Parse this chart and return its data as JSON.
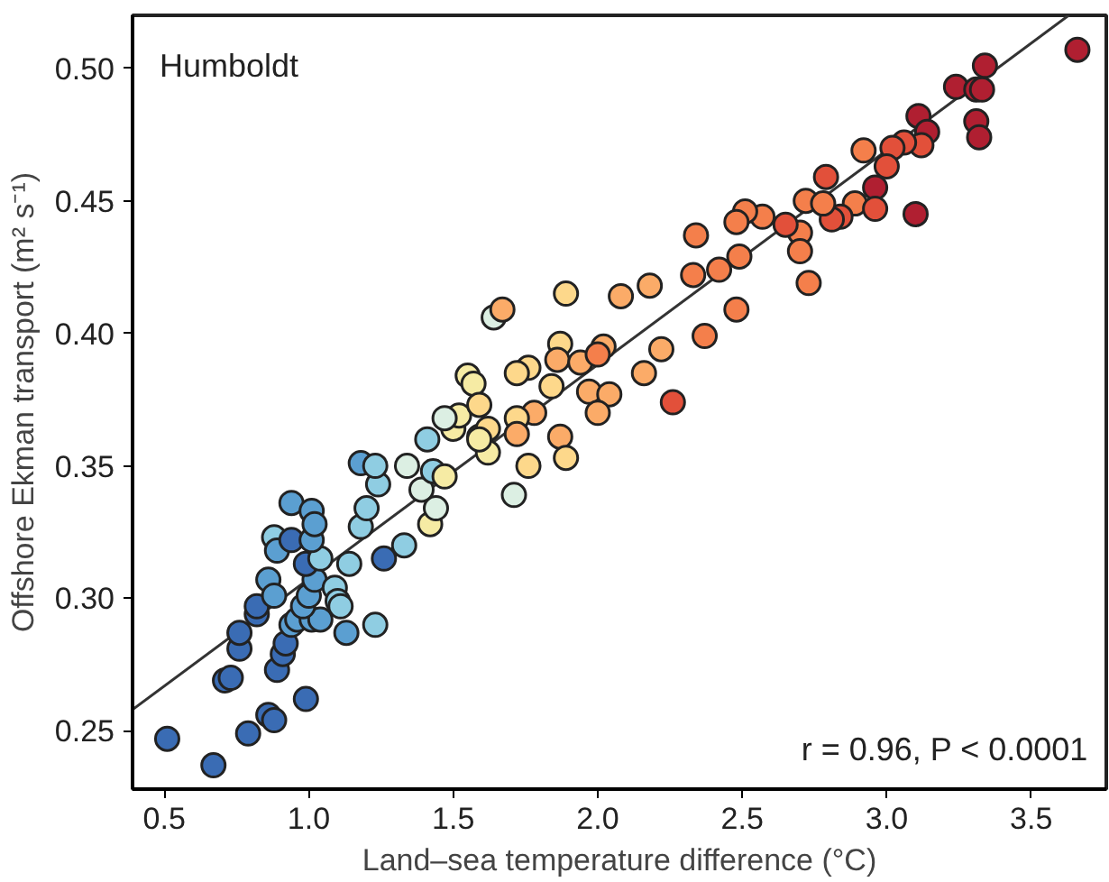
{
  "chart_data": {
    "type": "scatter",
    "xlabel": "Land–sea temperature difference (°C)",
    "ylabel": "Offshore Ekman transport (m² s⁻¹)",
    "annotations": [
      "Humboldt",
      "r = 0.96, P < 0.0001"
    ],
    "xlim": [
      0.39,
      3.76
    ],
    "ylim": [
      0.228,
      0.52
    ],
    "xticks": [
      0.5,
      {
        "value": 1,
        "label": "1.0"
      },
      1.5,
      {
        "value": 2,
        "label": "2.0"
      },
      2.5,
      {
        "value": 3,
        "label": "3.0"
      },
      3.5
    ],
    "yticks": [
      0.25,
      {
        "value": 0.3,
        "label": "0.30"
      },
      0.35,
      {
        "value": 0.4,
        "label": "0.40"
      },
      0.45,
      {
        "value": 0.5,
        "label": "0.50"
      }
    ],
    "marker": "circle",
    "series": [
      {
        "type": "line",
        "marker": "none",
        "color": "#333333",
        "x": [
          0.39,
          3.63
        ],
        "values": [
          0.258,
          0.52
        ]
      },
      {
        "x": [
          0.51,
          0.67,
          0.79,
          0.86,
          0.88,
          0.99,
          0.71,
          0.73,
          0.89,
          0.91,
          0.76,
          0.76,
          0.92,
          0.94,
          0.82,
          0.82,
          0.96,
          1.01,
          1.04,
          0.98,
          1.0,
          1.02,
          1.09,
          1.1,
          1.11,
          1.13,
          1.23,
          0.86,
          0.88,
          0.99,
          1.04,
          1.14,
          1.26,
          1.33,
          0.88,
          0.89,
          0.94,
          1.01,
          0.94,
          1.01,
          1.02,
          1.18,
          1.2,
          1.24,
          1.18,
          1.23,
          1.34,
          1.39,
          1.42,
          1.44,
          1.41,
          1.43,
          1.47,
          1.5,
          1.52,
          1.47,
          1.55,
          1.57,
          1.59,
          1.59,
          1.62,
          1.64,
          1.67,
          1.89,
          2.08,
          2.18,
          2.33,
          2.42,
          2.49,
          2.48,
          2.37,
          2.22,
          2.16,
          2.26,
          1.87,
          1.86,
          1.94,
          2.02,
          2.0,
          1.76,
          1.72,
          1.84,
          1.97,
          2.04,
          2.0,
          1.78,
          1.72,
          1.72,
          1.87,
          1.89,
          1.76,
          1.71,
          1.62,
          1.59,
          3.66,
          3.34,
          3.24,
          3.31,
          3.33,
          3.31,
          3.32,
          3.11,
          3.14,
          3.12,
          3.06,
          3.02,
          2.92,
          3.0,
          2.79,
          2.96,
          3.1,
          2.89,
          2.96,
          2.84,
          2.81,
          2.72,
          2.78,
          2.7,
          2.7,
          2.65,
          2.57,
          2.51,
          2.48,
          2.34,
          2.73
        ],
        "values": [
          0.247,
          0.237,
          0.249,
          0.256,
          0.254,
          0.262,
          0.269,
          0.27,
          0.273,
          0.279,
          0.281,
          0.287,
          0.283,
          0.29,
          0.294,
          0.297,
          0.292,
          0.292,
          0.292,
          0.297,
          0.301,
          0.307,
          0.304,
          0.299,
          0.297,
          0.287,
          0.29,
          0.307,
          0.301,
          0.313,
          0.315,
          0.313,
          0.315,
          0.32,
          0.323,
          0.318,
          0.322,
          0.322,
          0.336,
          0.333,
          0.328,
          0.327,
          0.334,
          0.343,
          0.351,
          0.35,
          0.35,
          0.341,
          0.328,
          0.334,
          0.36,
          0.348,
          0.346,
          0.364,
          0.369,
          0.368,
          0.384,
          0.381,
          0.373,
          0.361,
          0.355,
          0.406,
          0.409,
          0.415,
          0.414,
          0.418,
          0.422,
          0.424,
          0.429,
          0.409,
          0.399,
          0.394,
          0.385,
          0.374,
          0.396,
          0.39,
          0.389,
          0.395,
          0.392,
          0.387,
          0.385,
          0.38,
          0.378,
          0.377,
          0.37,
          0.37,
          0.368,
          0.362,
          0.361,
          0.353,
          0.35,
          0.339,
          0.364,
          0.36,
          0.507,
          0.501,
          0.493,
          0.492,
          0.492,
          0.48,
          0.474,
          0.482,
          0.476,
          0.471,
          0.472,
          0.47,
          0.469,
          0.463,
          0.459,
          0.455,
          0.445,
          0.449,
          0.447,
          0.444,
          0.443,
          0.45,
          0.449,
          0.438,
          0.431,
          0.441,
          0.444,
          0.446,
          0.442,
          0.437,
          0.419
        ],
        "colors": [
          "#3a6cb4",
          "#3a6cb4",
          "#3a6cb4",
          "#3a6cb4",
          "#3a6cb4",
          "#3a6cb4",
          "#3a6cb4",
          "#3a6cb4",
          "#3a6cb4",
          "#3a6cb4",
          "#3a6cb4",
          "#3a6cb4",
          "#3a6cb4",
          "#5b9fd1",
          "#3a6cb4",
          "#3a6cb4",
          "#5b9fd1",
          "#5b9fd1",
          "#5b9fd1",
          "#5b9fd1",
          "#5b9fd1",
          "#5b9fd1",
          "#8fcde2",
          "#8fcde2",
          "#8fcde2",
          "#5b9fd1",
          "#8fcde2",
          "#5b9fd1",
          "#5b9fd1",
          "#3a6cb4",
          "#8fcde2",
          "#8fcde2",
          "#3a6cb4",
          "#8fcde2",
          "#8fcde2",
          "#5b9fd1",
          "#3a6cb4",
          "#5b9fd1",
          "#5b9fd1",
          "#5b9fd1",
          "#5b9fd1",
          "#8fcde2",
          "#8fcde2",
          "#8fcde2",
          "#5b9fd1",
          "#8fcde2",
          "#dcefe3",
          "#dcefe3",
          "#f6eba4",
          "#dcefe3",
          "#8fcde2",
          "#8fcde2",
          "#f6eba4",
          "#f6eba4",
          "#f6eba4",
          "#dcefe3",
          "#f6eba4",
          "#f6eba4",
          "#fdd88b",
          "#fdd88b",
          "#f6eba4",
          "#dcefe3",
          "#fbab68",
          "#fdd88b",
          "#fbab68",
          "#fbab68",
          "#f47f4b",
          "#f47f4b",
          "#f47f4b",
          "#f47f4b",
          "#f47f4b",
          "#fbab68",
          "#fbab68",
          "#e2503a",
          "#fdd88b",
          "#fbab68",
          "#fbab68",
          "#fbab68",
          "#f47f4b",
          "#fdd88b",
          "#fdd88b",
          "#fdd88b",
          "#fbab68",
          "#fbab68",
          "#fbab68",
          "#fbab68",
          "#fdd88b",
          "#fbab68",
          "#fbab68",
          "#fdd88b",
          "#fdd88b",
          "#dcefe3",
          "#fdd88b",
          "#f6eba4",
          "#b01f31",
          "#b01f31",
          "#b01f31",
          "#b01f31",
          "#b01f31",
          "#b01f31",
          "#b01f31",
          "#b01f31",
          "#b01f31",
          "#e2503a",
          "#e2503a",
          "#e2503a",
          "#f47f4b",
          "#e2503a",
          "#e2503a",
          "#b01f31",
          "#b01f31",
          "#f47f4b",
          "#e2503a",
          "#e2503a",
          "#e2503a",
          "#f47f4b",
          "#f47f4b",
          "#f47f4b",
          "#f47f4b",
          "#e2503a",
          "#f47f4b",
          "#f47f4b",
          "#f47f4b",
          "#f47f4b",
          "#f47f4b"
        ]
      }
    ]
  }
}
